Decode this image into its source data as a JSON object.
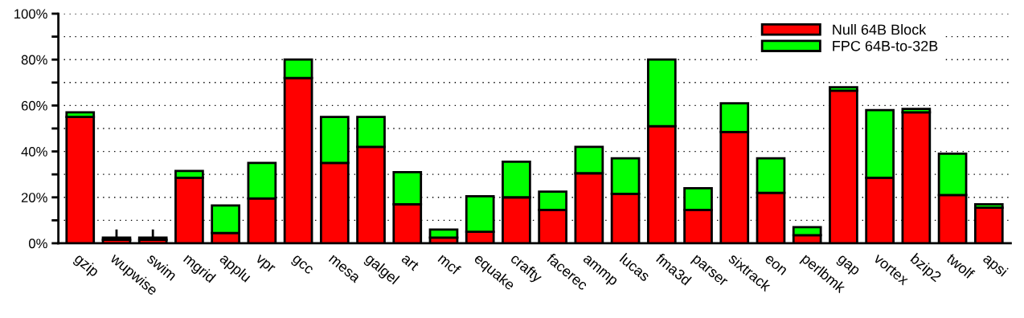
{
  "chart_data": {
    "type": "bar",
    "stacked": true,
    "categories": [
      "gzip",
      "wupwise",
      "swim",
      "mgrid",
      "applu",
      "vpr",
      "gcc",
      "mesa",
      "galgel",
      "art",
      "mcf",
      "equake",
      "crafty",
      "facerec",
      "ammp",
      "lucas",
      "fma3d",
      "parser",
      "sixtrack",
      "eon",
      "perlbmk",
      "gap",
      "vortex",
      "bzip2",
      "twolf",
      "apsi"
    ],
    "series": [
      {
        "name": "Null 64B Block",
        "color": "#ff0000",
        "values": [
          55,
          1.5,
          1.5,
          28.5,
          4.5,
          19.5,
          72,
          35,
          42,
          17,
          2.5,
          5,
          20,
          14.5,
          30.5,
          21.5,
          51,
          14.5,
          48.5,
          22,
          3.5,
          66.5,
          28.5,
          57,
          21,
          15.5
        ]
      },
      {
        "name": "FPC 64B-to-32B",
        "color": "#00ff00",
        "values": [
          2,
          1,
          1,
          3,
          12,
          15.5,
          8,
          20,
          13,
          14,
          3.5,
          15.5,
          15.5,
          8,
          11.5,
          15.5,
          29,
          9.5,
          12.5,
          15,
          3.5,
          1.5,
          29.5,
          1.5,
          18,
          1.5
        ],
        "errors": [
          null,
          [
            2.5,
            6
          ],
          [
            2.5,
            6
          ],
          null,
          null,
          null,
          null,
          null,
          null,
          null,
          null,
          null,
          null,
          null,
          null,
          null,
          null,
          null,
          null,
          null,
          null,
          null,
          null,
          null,
          null,
          null
        ]
      }
    ],
    "ylim": [
      0,
      100
    ],
    "yticks": [
      {
        "value": 0,
        "label": "0%"
      },
      {
        "value": 10,
        "label": null
      },
      {
        "value": 20,
        "label": "20%"
      },
      {
        "value": 30,
        "label": null
      },
      {
        "value": 40,
        "label": "40%"
      },
      {
        "value": 50,
        "label": null
      },
      {
        "value": 60,
        "label": "60%"
      },
      {
        "value": 70,
        "label": null
      },
      {
        "value": 80,
        "label": "80%"
      },
      {
        "value": 90,
        "label": null
      },
      {
        "value": 100,
        "label": "100%"
      }
    ],
    "grid": "y",
    "legend": "top right"
  }
}
